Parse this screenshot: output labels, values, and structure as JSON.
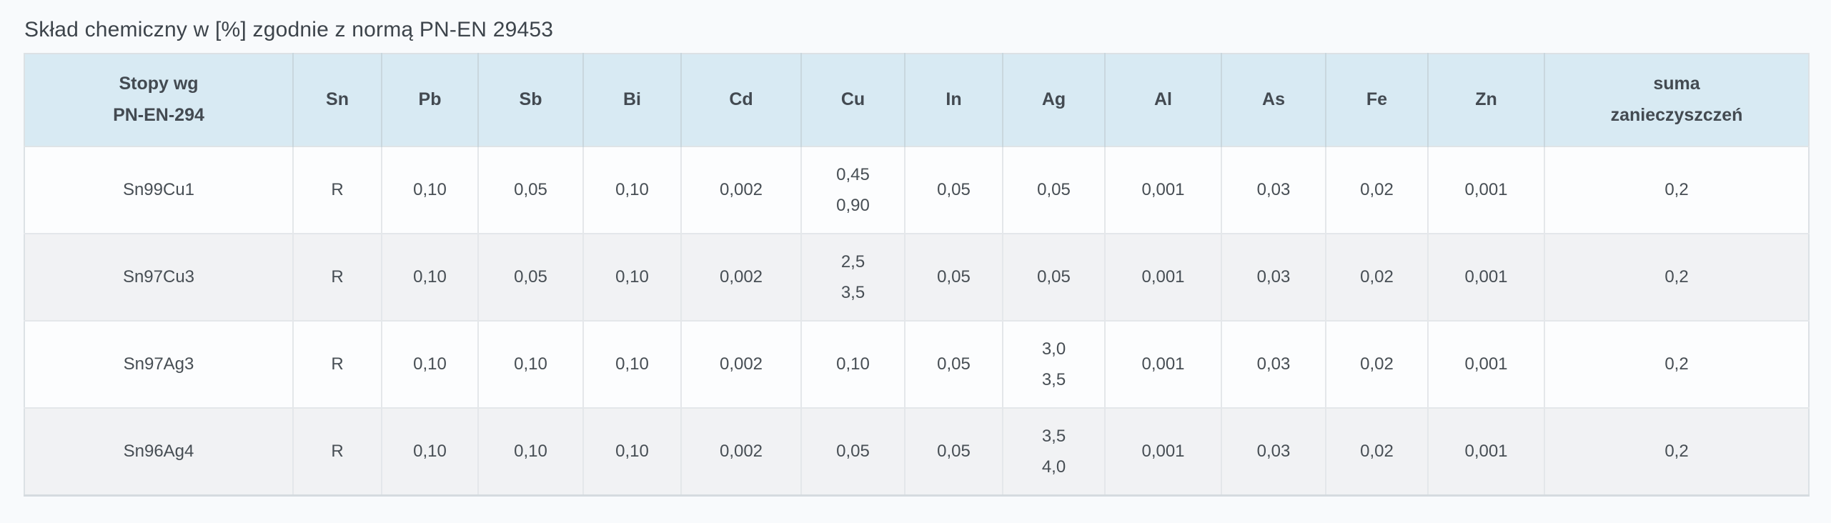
{
  "page": {
    "title": "Skład chemiczny w [%] zgodnie z normą PN-EN 29453"
  },
  "colors": {
    "page_bg": "#f8fafc",
    "header_bg": "#d8eaf3",
    "row_bg": "#fcfdfe",
    "row_alt_bg": "#f1f2f4",
    "text": "#474e54",
    "header_text": "#434a51",
    "border": "#e4e7ea",
    "header_border": "#c9d7de"
  },
  "table": {
    "headers": [
      "Stopy wg\nPN-EN-294",
      "Sn",
      "Pb",
      "Sb",
      "Bi",
      "Cd",
      "Cu",
      "In",
      "Ag",
      "Al",
      "As",
      "Fe",
      "Zn",
      "suma\nzanieczyszczeń"
    ],
    "rows": [
      [
        "Sn99Cu1",
        "R",
        "0,10",
        "0,05",
        "0,10",
        "0,002",
        "0,45\n0,90",
        "0,05",
        "0,05",
        "0,001",
        "0,03",
        "0,02",
        "0,001",
        "0,2"
      ],
      [
        "Sn97Cu3",
        "R",
        "0,10",
        "0,05",
        "0,10",
        "0,002",
        "2,5\n3,5",
        "0,05",
        "0,05",
        "0,001",
        "0,03",
        "0,02",
        "0,001",
        "0,2"
      ],
      [
        "Sn97Ag3",
        "R",
        "0,10",
        "0,10",
        "0,10",
        "0,002",
        "0,10",
        "0,05",
        "3,0\n3,5",
        "0,001",
        "0,03",
        "0,02",
        "0,001",
        "0,2"
      ],
      [
        "Sn96Ag4",
        "R",
        "0,10",
        "0,10",
        "0,10",
        "0,002",
        "0,05",
        "0,05",
        "3,5\n4,0",
        "0,001",
        "0,03",
        "0,02",
        "0,001",
        "0,2"
      ]
    ]
  },
  "chart_data": {
    "type": "table",
    "title": "Skład chemiczny w [%] zgodnie z normą PN-EN 29453",
    "columns": [
      "Stopy wg PN-EN-294",
      "Sn",
      "Pb",
      "Sb",
      "Bi",
      "Cd",
      "Cu",
      "In",
      "Ag",
      "Al",
      "As",
      "Fe",
      "Zn",
      "suma zanieczyszczeń"
    ],
    "rows": [
      [
        "Sn99Cu1",
        "R",
        "0,10",
        "0,05",
        "0,10",
        "0,002",
        "0,45–0,90",
        "0,05",
        "0,05",
        "0,001",
        "0,03",
        "0,02",
        "0,001",
        "0,2"
      ],
      [
        "Sn97Cu3",
        "R",
        "0,10",
        "0,05",
        "0,10",
        "0,002",
        "2,5–3,5",
        "0,05",
        "0,05",
        "0,001",
        "0,03",
        "0,02",
        "0,001",
        "0,2"
      ],
      [
        "Sn97Ag3",
        "R",
        "0,10",
        "0,10",
        "0,10",
        "0,002",
        "0,10",
        "0,05",
        "3,0–3,5",
        "0,001",
        "0,03",
        "0,02",
        "0,001",
        "0,2"
      ],
      [
        "Sn96Ag4",
        "R",
        "0,10",
        "0,10",
        "0,10",
        "0,002",
        "0,05",
        "0,05",
        "3,5–4,0",
        "0,001",
        "0,03",
        "0,02",
        "0,001",
        "0,2"
      ]
    ],
    "layout": {
      "header_fill": "#d8eaf3",
      "striped": true,
      "align": "center"
    }
  }
}
